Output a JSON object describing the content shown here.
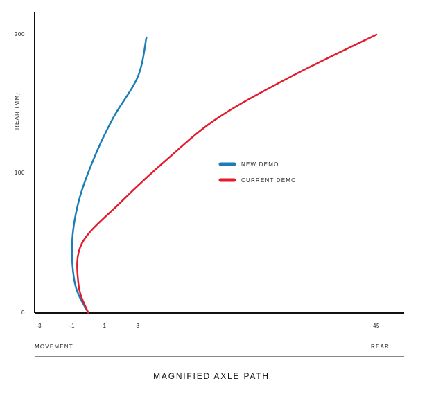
{
  "chart_data": {
    "type": "line",
    "title": "",
    "xlabel_left": "MOVEMENT",
    "xlabel_right": "REAR",
    "ylabel": "REAR (MM)",
    "caption": "MAGNIFIED AXLE PATH",
    "x_ticks": [
      "-3",
      "-1",
      "1",
      "3",
      "45"
    ],
    "y_ticks": [
      "0",
      "100",
      "200"
    ],
    "ylim": [
      0,
      200
    ],
    "grid": false,
    "legend_position": "center-right",
    "series": [
      {
        "name": "NEW DEMO",
        "color": "#1a7db8",
        "points": [
          {
            "x": 0.0,
            "y": 0
          },
          {
            "x": -0.8,
            "y": 20
          },
          {
            "x": -1.0,
            "y": 50
          },
          {
            "x": -0.6,
            "y": 80
          },
          {
            "x": 0.3,
            "y": 110
          },
          {
            "x": 1.5,
            "y": 140
          },
          {
            "x": 3.0,
            "y": 170
          },
          {
            "x": 4.5,
            "y": 198
          }
        ]
      },
      {
        "name": "CURRENT DEMO",
        "color": "#e31b2d",
        "points": [
          {
            "x": 0.0,
            "y": 0
          },
          {
            "x": -0.6,
            "y": 20
          },
          {
            "x": -0.4,
            "y": 50
          },
          {
            "x": 2.0,
            "y": 80
          },
          {
            "x": 8.0,
            "y": 110
          },
          {
            "x": 17.0,
            "y": 140
          },
          {
            "x": 30.0,
            "y": 170
          },
          {
            "x": 45.0,
            "y": 200
          }
        ]
      }
    ]
  }
}
